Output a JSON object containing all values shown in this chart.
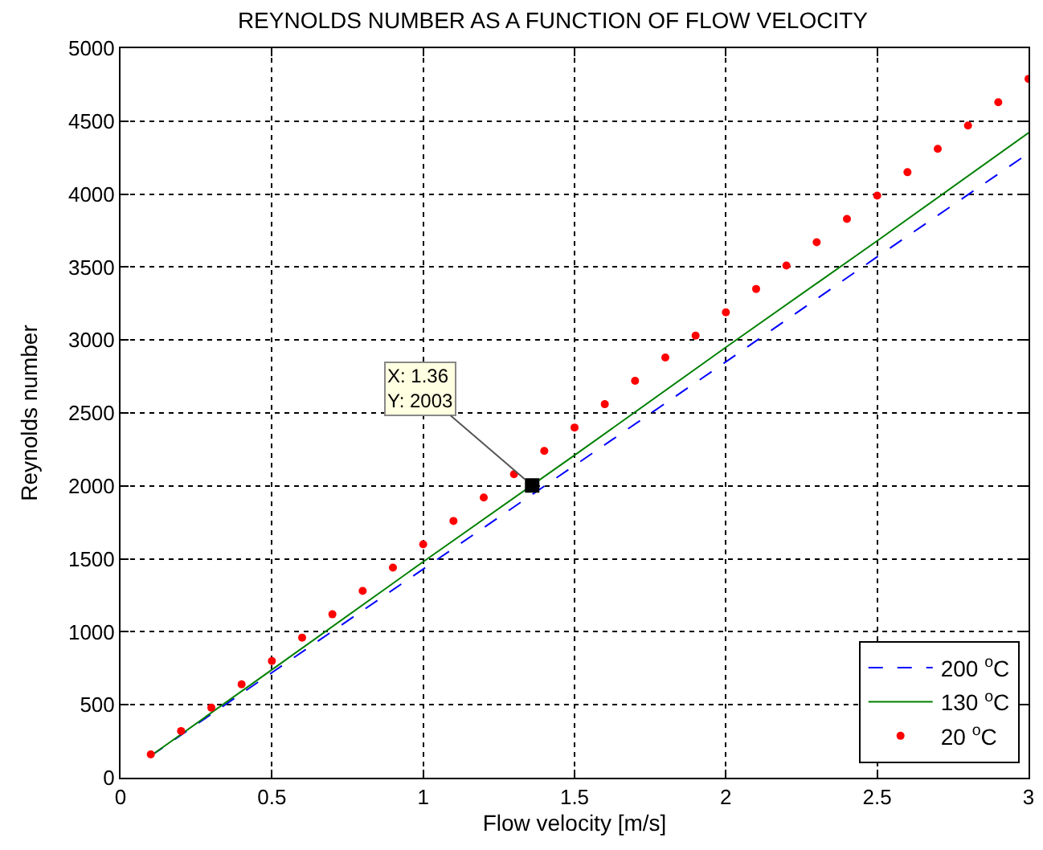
{
  "chart_data": {
    "type": "line",
    "title": "REYNOLDS NUMBER AS A FUNCTION OF FLOW VELOCITY",
    "xlabel": "Flow velocity [m/s]",
    "ylabel": "Reynolds number",
    "xlim": [
      0,
      3
    ],
    "xticks": [
      0,
      0.5,
      1,
      1.5,
      2,
      2.5,
      3
    ],
    "ylim": [
      0,
      5000
    ],
    "yticks": [
      0,
      500,
      1000,
      1500,
      2000,
      2500,
      3000,
      3500,
      4000,
      4500,
      5000
    ],
    "grid": true,
    "legend": "bottom right",
    "annotations": [
      {
        "text": "X: 1.36\nY: 2003",
        "x": 1.36,
        "y": 2003
      }
    ],
    "series": [
      {
        "name": "200 $^{o}$C",
        "color": "#0000ff",
        "line_style": "dashed",
        "x": [
          0.1,
          0.5,
          1,
          1.5,
          2,
          2.5,
          3
        ],
        "values": [
          150,
          720,
          1430,
          2140,
          2850,
          3570,
          4280
        ]
      },
      {
        "name": "130 $^{o}$C",
        "color": "#008000",
        "line_style": "solid",
        "x": [
          0.1,
          0.5,
          1,
          1.5,
          2,
          2.5,
          3
        ],
        "values": [
          150,
          740,
          1480,
          2210,
          2950,
          3680,
          4420
        ]
      },
      {
        "name": "20 $^{o}$C",
        "color": "#ff0000",
        "type": "scatter",
        "marker": "circle",
        "x": [
          0.1,
          0.2,
          0.3,
          0.4,
          0.5,
          0.6,
          0.7,
          0.8,
          0.9,
          1.0,
          1.1,
          1.2,
          1.3,
          1.4,
          1.5,
          1.6,
          1.7,
          1.8,
          1.9,
          2.0,
          2.1,
          2.2,
          2.3,
          2.4,
          2.5,
          2.6,
          2.7,
          2.8,
          2.9,
          3.0
        ],
        "values": [
          160,
          320,
          480,
          640,
          800,
          960,
          1120,
          1280,
          1440,
          1600,
          1760,
          1920,
          2080,
          2240,
          2400,
          2560,
          2720,
          2880,
          3030,
          3190,
          3350,
          3510,
          3670,
          3830,
          3990,
          4150,
          4310,
          4470,
          4630,
          4790
        ]
      }
    ]
  }
}
